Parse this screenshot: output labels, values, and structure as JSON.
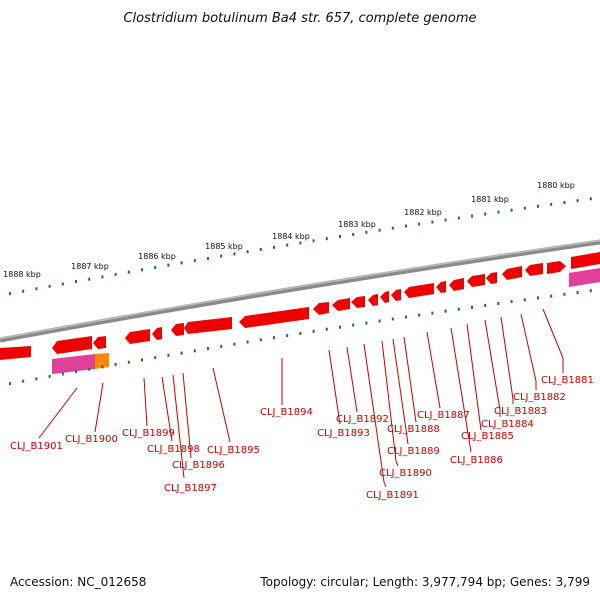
{
  "title": "Clostridium botulinum Ba4 str. 657, complete genome",
  "accession": "Accession: NC_012658",
  "topology": "Topology: circular; Length: 3,977,794 bp; Genes: 3,799",
  "colors": {
    "backbone": "#8a8a8a",
    "gene": "#ee0000",
    "gene_top": "#ff5a5a",
    "rna": "#e0409a",
    "other_feature": "#ff8800",
    "ticks": "#1a7a1a",
    "label": "#cc0000"
  },
  "kbp_ticks": [
    "1888 kbp",
    "1887 kbp",
    "1886 kbp",
    "1885 kbp",
    "1884 kbp",
    "1883 kbp",
    "1882 kbp",
    "1881 kbp",
    "1880 kbp"
  ],
  "gene_labels": [
    "CLJ_B1881",
    "CLJ_B1882",
    "CLJ_B1883",
    "CLJ_B1884",
    "CLJ_B1885",
    "CLJ_B1886",
    "CLJ_B1887",
    "CLJ_B1888",
    "CLJ_B1889",
    "CLJ_B1890",
    "CLJ_B1891",
    "CLJ_B1892",
    "CLJ_B1893",
    "CLJ_B1894",
    "CLJ_B1895",
    "CLJ_B1896",
    "CLJ_B1897",
    "CLJ_B1898",
    "CLJ_B1899",
    "CLJ_B1900",
    "CLJ_B1901"
  ]
}
